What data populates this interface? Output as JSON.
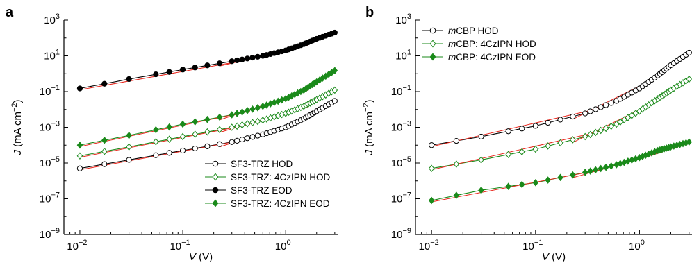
{
  "figure": {
    "panels": [
      "a",
      "b"
    ]
  },
  "colors": {
    "axis": "#000000",
    "fit_line": "#e8281e",
    "black_series": "#000000",
    "green_series": "#1a8a1a"
  },
  "chart_data": [
    {
      "panel_label": "a",
      "type": "scatter",
      "xscale": "log",
      "yscale": "log",
      "xlim": [
        0.007,
        3.2
      ],
      "ylim": [
        1e-09,
        1000
      ],
      "xlabel": "V (V)",
      "xlabel_var": "V",
      "xlabel_unit": " (V)",
      "ylabel": "J (mA cm−2)",
      "ylabel_var": "J",
      "ylabel_unit": " (mA cm",
      "ylabel_exp": "−2",
      "ylabel_close": ")",
      "xticks": [
        {
          "value": 0.01,
          "base": "10",
          "exp": "−2"
        },
        {
          "value": 0.1,
          "base": "10",
          "exp": "−1"
        },
        {
          "value": 1,
          "base": "10",
          "exp": "0"
        }
      ],
      "yticks": [
        {
          "value": 1e-09,
          "base": "10",
          "exp": "−9"
        },
        {
          "value": 1e-07,
          "base": "10",
          "exp": "−7"
        },
        {
          "value": 1e-05,
          "base": "10",
          "exp": "−5"
        },
        {
          "value": 0.001,
          "base": "10",
          "exp": "−3"
        },
        {
          "value": 0.1,
          "base": "10",
          "exp": "−1"
        },
        {
          "value": 10,
          "base": "10",
          "exp": "1"
        },
        {
          "value": 1000,
          "base": "10",
          "exp": "3"
        }
      ],
      "legend_position": "bottom-right",
      "series": [
        {
          "name": "SF3-TRZ HOD",
          "marker": "circle",
          "filled": false,
          "color": "#000000",
          "x": [
            0.01,
            0.03,
            0.1,
            0.3,
            0.6,
            1.0,
            1.5,
            2.0,
            3.0
          ],
          "y": [
            5e-06,
            1.5e-05,
            5e-05,
            0.00015,
            0.0004,
            0.001,
            0.003,
            0.008,
            0.03
          ]
        },
        {
          "name": "SF3-TRZ: 4CzIPN HOD",
          "marker": "diamond",
          "filled": false,
          "color": "#1a8a1a",
          "x": [
            0.01,
            0.03,
            0.1,
            0.3,
            0.6,
            1.0,
            1.5,
            2.0,
            3.0
          ],
          "y": [
            2.5e-05,
            8e-05,
            0.0003,
            0.001,
            0.0025,
            0.006,
            0.015,
            0.035,
            0.12
          ]
        },
        {
          "name": "SF3-TRZ EOD",
          "marker": "circle",
          "filled": true,
          "color": "#000000",
          "x": [
            0.01,
            0.03,
            0.1,
            0.3,
            0.6,
            1.0,
            1.5,
            2.0,
            3.0
          ],
          "y": [
            0.15,
            0.5,
            1.7,
            5,
            10,
            20,
            45,
            90,
            200
          ]
        },
        {
          "name": "SF3-TRZ: 4CzIPN EOD",
          "marker": "diamond",
          "filled": true,
          "color": "#1a8a1a",
          "x": [
            0.01,
            0.03,
            0.1,
            0.3,
            0.6,
            1.0,
            1.5,
            2.0,
            3.0
          ],
          "y": [
            0.0001,
            0.00035,
            0.0015,
            0.005,
            0.015,
            0.04,
            0.12,
            0.35,
            1.5
          ]
        }
      ]
    },
    {
      "panel_label": "b",
      "type": "scatter",
      "xscale": "log",
      "yscale": "log",
      "xlim": [
        0.007,
        3.2
      ],
      "ylim": [
        1e-09,
        1000
      ],
      "xlabel": "V (V)",
      "xlabel_var": "V",
      "xlabel_unit": " (V)",
      "ylabel": "J (mA cm−2)",
      "ylabel_var": "J",
      "ylabel_unit": " (mA cm",
      "ylabel_exp": "−2",
      "ylabel_close": ")",
      "xticks": [
        {
          "value": 0.01,
          "base": "10",
          "exp": "−2"
        },
        {
          "value": 0.1,
          "base": "10",
          "exp": "−1"
        },
        {
          "value": 1,
          "base": "10",
          "exp": "0"
        }
      ],
      "yticks": [
        {
          "value": 1e-09,
          "base": "10",
          "exp": "−9"
        },
        {
          "value": 1e-07,
          "base": "10",
          "exp": "−7"
        },
        {
          "value": 1e-05,
          "base": "10",
          "exp": "−5"
        },
        {
          "value": 0.001,
          "base": "10",
          "exp": "−3"
        },
        {
          "value": 0.1,
          "base": "10",
          "exp": "−1"
        },
        {
          "value": 10,
          "base": "10",
          "exp": "1"
        },
        {
          "value": 1000,
          "base": "10",
          "exp": "3"
        }
      ],
      "legend_position": "top-left",
      "series": [
        {
          "name": "mCBP HOD",
          "name_italic": "m",
          "name_rest": "CBP HOD",
          "marker": "circle",
          "filled": false,
          "color": "#000000",
          "x": [
            0.01,
            0.03,
            0.1,
            0.3,
            0.6,
            1.0,
            1.5,
            2.0,
            3.0
          ],
          "y": [
            0.0001,
            0.0003,
            0.0012,
            0.006,
            0.03,
            0.15,
            0.8,
            3,
            15
          ]
        },
        {
          "name": "mCBP: 4CzIPN HOD",
          "name_italic": "m",
          "name_rest": "CBP: 4CzIPN HOD",
          "marker": "diamond",
          "filled": false,
          "color": "#1a8a1a",
          "x": [
            0.01,
            0.03,
            0.1,
            0.3,
            0.6,
            1.0,
            1.5,
            2.0,
            3.0
          ],
          "y": [
            5e-06,
            1.5e-05,
            6e-05,
            0.0003,
            0.0015,
            0.008,
            0.04,
            0.12,
            0.5
          ]
        },
        {
          "name": "mCBP: 4CzIPN EOD",
          "name_italic": "m",
          "name_rest": "CBP: 4CzIPN EOD",
          "marker": "diamond",
          "filled": true,
          "color": "#1a8a1a",
          "x": [
            0.01,
            0.03,
            0.1,
            0.3,
            0.6,
            1.0,
            1.5,
            2.0,
            3.0
          ],
          "y": [
            8e-08,
            3e-07,
            8e-07,
            3e-06,
            8e-06,
            2e-05,
            5e-05,
            8e-05,
            0.00015
          ]
        }
      ]
    }
  ]
}
